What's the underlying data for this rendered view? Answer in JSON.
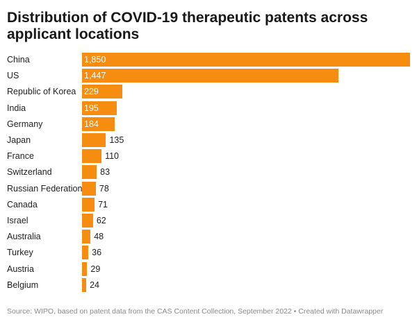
{
  "chart_data": {
    "type": "bar",
    "orientation": "horizontal",
    "title": "Distribution of COVID-19 therapeutic patents across applicant locations",
    "categories": [
      "China",
      "US",
      "Republic of Korea",
      "India",
      "Germany",
      "Japan",
      "France",
      "Switzerland",
      "Russian Federation",
      "Canada",
      "Israel",
      "Australia",
      "Turkey",
      "Austria",
      "Belgium"
    ],
    "values": [
      1850,
      1447,
      229,
      195,
      184,
      135,
      110,
      83,
      78,
      71,
      62,
      48,
      36,
      29,
      24
    ],
    "value_labels": [
      "1,850",
      "1,447",
      "229",
      "195",
      "184",
      "135",
      "110",
      "83",
      "78",
      "71",
      "62",
      "48",
      "36",
      "29",
      "24"
    ],
    "xlim": [
      0,
      1850
    ],
    "xlabel": "",
    "ylabel": "",
    "grid": false,
    "bar_color": "#f68d11",
    "source": "Source: WIPO, based on patent data from the CAS Content Collection, September 2022 • Created with Datawrapper"
  }
}
